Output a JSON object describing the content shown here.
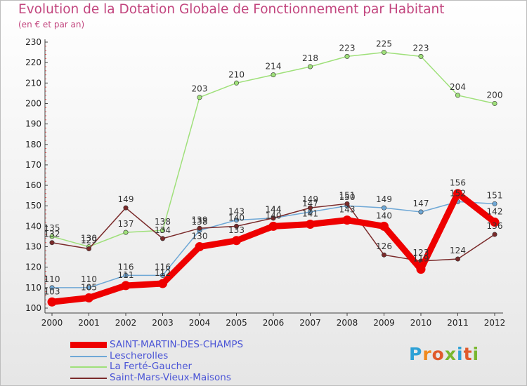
{
  "title": "Evolution de la Dotation Globale de Fonctionnement par Habitant",
  "subtitle": "(en € et par an)",
  "logo": {
    "chars": [
      "P",
      "r",
      "o",
      "x",
      "i",
      "t",
      "i"
    ],
    "colors": [
      "#2ea1d6",
      "#f08a1d",
      "#e05a2b",
      "#79b72e",
      "#2ea1d6",
      "#e05a2b",
      "#79b72e"
    ]
  },
  "chart_data": {
    "type": "line",
    "title": "Evolution de la Dotation Globale de Fonctionnement par Habitant",
    "subtitle": "(en € et par an)",
    "categories": [
      "2000",
      "2001",
      "2002",
      "2003",
      "2004",
      "2005",
      "2006",
      "2007",
      "2008",
      "2009",
      "2010",
      "2011",
      "2012"
    ],
    "ylim": [
      100,
      230
    ],
    "yticks": [
      100,
      110,
      120,
      130,
      140,
      150,
      160,
      170,
      180,
      190,
      200,
      210,
      220,
      230
    ],
    "grid": false,
    "series": [
      {
        "name": "SAINT-MARTIN-DES-CHAMPS",
        "color": "#ee0000",
        "values": [
          103,
          105,
          111,
          112,
          130,
          133,
          140,
          141,
          143,
          140,
          119,
          156,
          142
        ]
      },
      {
        "name": "Lescherolles",
        "color": "#6fa8d6",
        "values": [
          110,
          110,
          116,
          116,
          138,
          143,
          144,
          147,
          150,
          149,
          147,
          152,
          151
        ]
      },
      {
        "name": "La Ferté-Gaucher",
        "color": "#9fe07a",
        "values": [
          135,
          130,
          137,
          138,
          203,
          210,
          214,
          218,
          223,
          225,
          223,
          204,
          200
        ]
      },
      {
        "name": "Saint-Mars-Vieux-Maisons",
        "color": "#7a2a2a",
        "values": [
          132,
          129,
          149,
          134,
          139,
          140,
          144,
          149,
          151,
          126,
          123,
          124,
          136
        ]
      }
    ]
  }
}
